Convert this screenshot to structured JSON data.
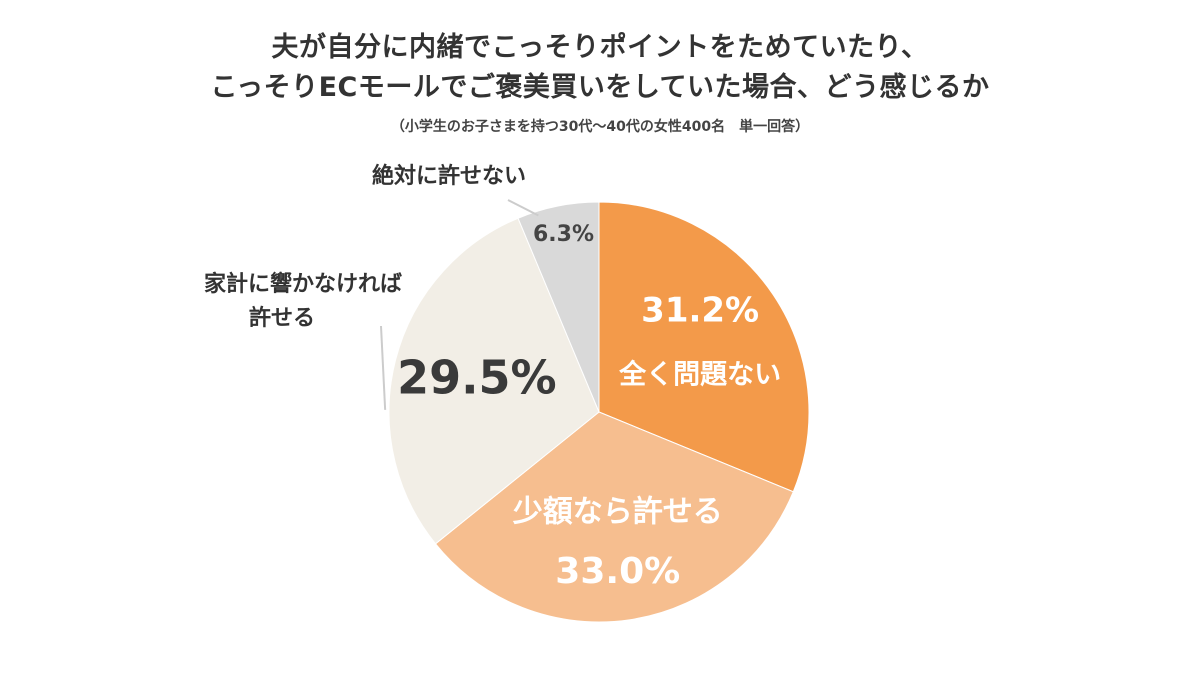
{
  "title_lines": [
    "夫が自分に内緒でこっそりポイントをためていたり、",
    "こっそりECモールでご褒美買いをしていた場合、どう感じるか"
  ],
  "subtitle": "（小学生のお子さまを持つ30代〜40代の女性400名　単一回答）",
  "chart_data": {
    "type": "pie",
    "title": "夫が自分に内緒でこっそりポイントをためていたり、こっそりECモールでご褒美買いをしていた場合、どう感じるか",
    "subtitle": "（小学生のお子さまを持つ30代〜40代の女性400名　単一回答）",
    "start_angle_deg": 0,
    "direction": "clockwise",
    "slices": [
      {
        "label": "全く問題ない",
        "value": 31.2,
        "value_label": "31.2%",
        "color": "#F39A4A",
        "text_color": "#ffffff"
      },
      {
        "label": "少額なら許せる",
        "value": 33.0,
        "value_label": "33.0%",
        "color": "#F6BE8F",
        "text_color": "#ffffff"
      },
      {
        "label": "家計に響かなければ許せる",
        "value": 29.5,
        "value_label": "29.5%",
        "color": "#F2EEE6",
        "text_color": "#3a3a3a"
      },
      {
        "label": "絶対に許せない",
        "value": 6.3,
        "value_label": "6.3%",
        "color": "#D9D9D9",
        "text_color": "#444444"
      }
    ],
    "external_labels": {
      "kakei_line1": "家計に響かなければ",
      "kakei_line2": "許せる",
      "zettai": "絶対に許せない"
    },
    "legend": "none"
  }
}
